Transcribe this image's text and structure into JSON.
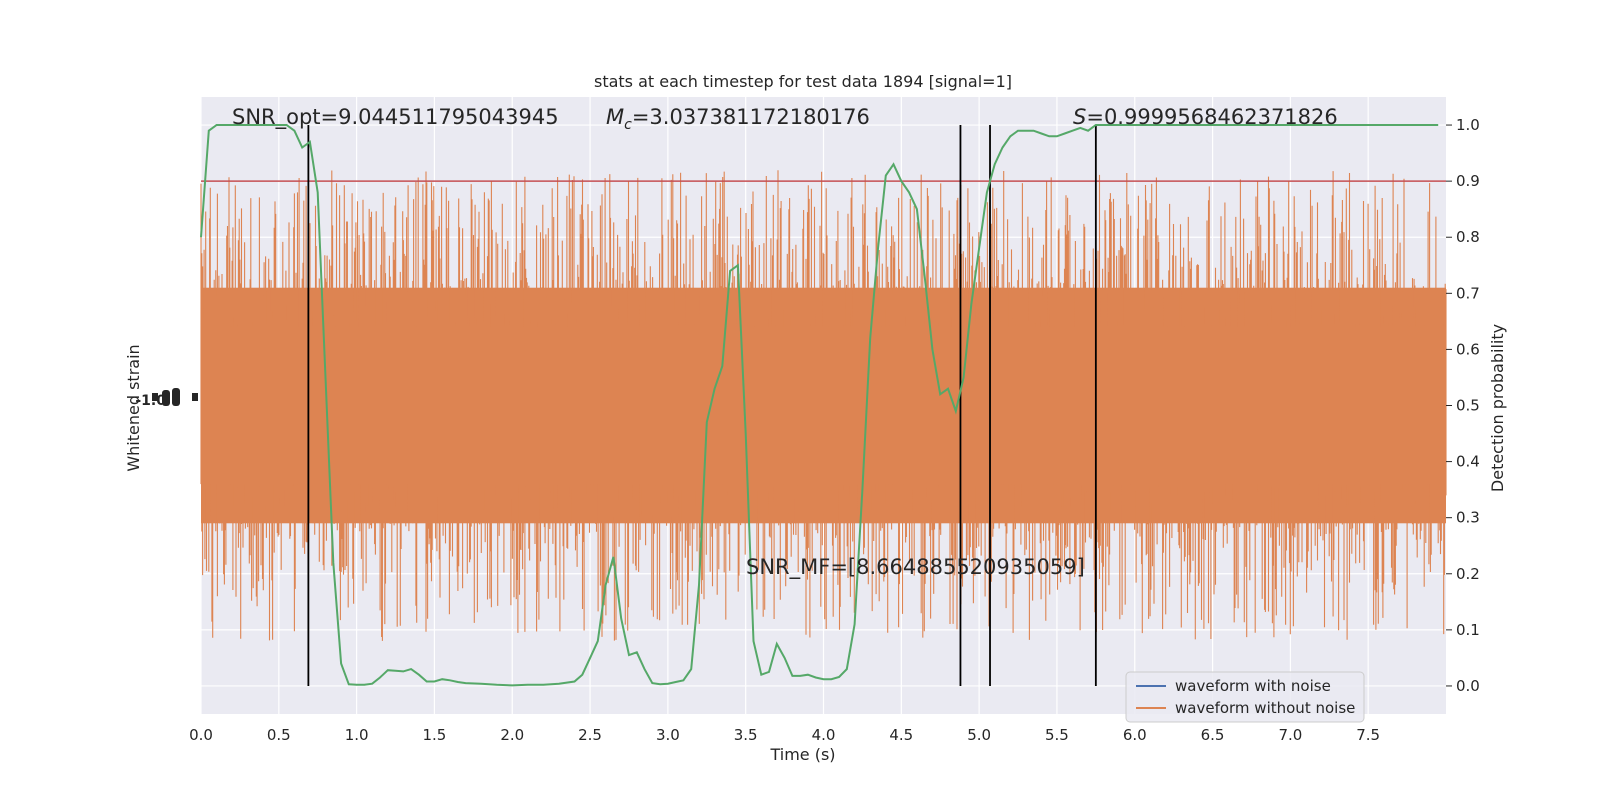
{
  "chart_data": {
    "type": "line",
    "title": "stats at each timestep for test data 1894 [signal=1]",
    "xlabel": "Time (s)",
    "ylabel_left": "Whitened strain",
    "ylabel_right": "Detection probability",
    "xlim": [
      0.0,
      8.0
    ],
    "ylim_right": [
      -0.05,
      1.05
    ],
    "x_ticks": [
      "0.0",
      "0.5",
      "1.0",
      "1.5",
      "2.0",
      "2.5",
      "3.0",
      "3.5",
      "4.0",
      "4.5",
      "5.0",
      "5.5",
      "6.0",
      "6.5",
      "7.0",
      "7.5"
    ],
    "y_ticks_right": [
      "0.0",
      "0.1",
      "0.2",
      "0.3",
      "0.4",
      "0.5",
      "0.6",
      "0.7",
      "0.8",
      "0.9",
      "1.0"
    ],
    "grid": true,
    "legend_position": "lower-right",
    "legend": [
      {
        "label": "waveform with noise",
        "color": "#4c72b0"
      },
      {
        "label": "waveform without noise",
        "color": "#dd8452"
      }
    ],
    "annotations": {
      "snr_opt": "SNR_opt=9.044511795043945",
      "chirp_mass_symbol": "M",
      "chirp_mass_sub": "c",
      "chirp_mass_value": "=3.037381172180176",
      "s_symbol": "S",
      "s_value": "=0.9999568462371826",
      "snr_mf": "SNR_MF=[8.664885520935059]"
    },
    "threshold": {
      "y": 0.9,
      "color": "#c44e52"
    },
    "vertical_lines_x": [
      0.69,
      4.88,
      5.07,
      5.75
    ],
    "strain_band": {
      "center": 0.5,
      "core_half_width": 0.21,
      "spike_max": 0.4,
      "color": "#dd8452"
    },
    "series": [
      {
        "name": "Detection probability",
        "color": "#55a868",
        "x": [
          0.0,
          0.05,
          0.1,
          0.2,
          0.3,
          0.4,
          0.5,
          0.55,
          0.6,
          0.65,
          0.7,
          0.75,
          0.8,
          0.85,
          0.9,
          0.95,
          1.0,
          1.05,
          1.1,
          1.15,
          1.2,
          1.25,
          1.3,
          1.35,
          1.4,
          1.45,
          1.5,
          1.55,
          1.6,
          1.65,
          1.7,
          1.8,
          1.9,
          2.0,
          2.1,
          2.2,
          2.3,
          2.4,
          2.45,
          2.5,
          2.55,
          2.6,
          2.65,
          2.7,
          2.75,
          2.8,
          2.85,
          2.9,
          2.95,
          3.0,
          3.05,
          3.1,
          3.15,
          3.2,
          3.25,
          3.3,
          3.35,
          3.4,
          3.45,
          3.5,
          3.55,
          3.6,
          3.65,
          3.7,
          3.75,
          3.8,
          3.85,
          3.9,
          3.95,
          4.0,
          4.05,
          4.1,
          4.15,
          4.2,
          4.25,
          4.3,
          4.35,
          4.4,
          4.45,
          4.5,
          4.55,
          4.6,
          4.65,
          4.7,
          4.75,
          4.8,
          4.85,
          4.9,
          4.95,
          5.0,
          5.05,
          5.1,
          5.15,
          5.2,
          5.25,
          5.3,
          5.35,
          5.4,
          5.45,
          5.5,
          5.55,
          5.6,
          5.65,
          5.7,
          5.75,
          5.8,
          5.85,
          5.9,
          5.95,
          6.0,
          6.1,
          6.2,
          6.3,
          6.4,
          6.5,
          6.6,
          6.7,
          6.8,
          6.9,
          7.0,
          7.2,
          7.4,
          7.6,
          7.8,
          7.95
        ],
        "y": [
          0.8,
          0.99,
          1.0,
          1.0,
          1.0,
          1.0,
          1.0,
          1.0,
          0.99,
          0.96,
          0.97,
          0.88,
          0.55,
          0.22,
          0.04,
          0.003,
          0.002,
          0.002,
          0.004,
          0.015,
          0.028,
          0.027,
          0.026,
          0.03,
          0.02,
          0.008,
          0.008,
          0.012,
          0.01,
          0.007,
          0.005,
          0.004,
          0.002,
          0.001,
          0.002,
          0.002,
          0.004,
          0.008,
          0.02,
          0.05,
          0.08,
          0.18,
          0.23,
          0.12,
          0.055,
          0.06,
          0.03,
          0.005,
          0.003,
          0.004,
          0.007,
          0.01,
          0.03,
          0.18,
          0.47,
          0.53,
          0.57,
          0.74,
          0.75,
          0.45,
          0.08,
          0.02,
          0.025,
          0.075,
          0.05,
          0.018,
          0.018,
          0.02,
          0.015,
          0.012,
          0.012,
          0.016,
          0.03,
          0.11,
          0.35,
          0.62,
          0.78,
          0.91,
          0.93,
          0.9,
          0.88,
          0.85,
          0.73,
          0.6,
          0.52,
          0.53,
          0.49,
          0.55,
          0.68,
          0.78,
          0.88,
          0.93,
          0.96,
          0.98,
          0.99,
          0.99,
          0.99,
          0.985,
          0.98,
          0.98,
          0.985,
          0.99,
          0.995,
          0.99,
          1.0,
          1.0,
          1.0,
          1.0,
          1.0,
          1.0,
          1.0,
          1.0,
          1.0,
          1.0,
          1.0,
          1.0,
          1.0,
          1.0,
          1.0,
          1.0,
          1.0,
          1.0,
          1.0,
          1.0,
          1.0
        ]
      }
    ]
  },
  "left_axis_ticklabel_note": "-1.0"
}
